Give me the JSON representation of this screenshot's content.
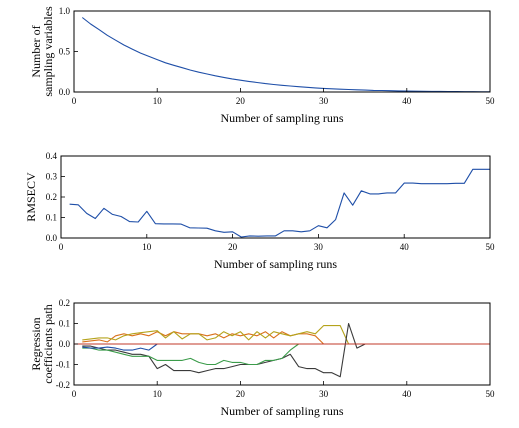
{
  "chart_data": [
    {
      "type": "line",
      "ylabel": [
        "Number of",
        "sampling variables"
      ],
      "xlabel": "Number of sampling runs",
      "xlim": [
        0,
        50
      ],
      "ylim": [
        0,
        1.0
      ],
      "xticks": [
        0,
        10,
        20,
        30,
        40,
        50
      ],
      "yticks": [
        0,
        0.5,
        1.0
      ],
      "ytick_labels": [
        "0.0",
        "0.5",
        "1.0"
      ],
      "colors": [
        "#1f4fa8"
      ],
      "series": [
        {
          "x": [
            1,
            2,
            3,
            4,
            5,
            6,
            7,
            8,
            9,
            10,
            11,
            12,
            13,
            14,
            15,
            16,
            17,
            18,
            19,
            20,
            21,
            22,
            23,
            24,
            25,
            26,
            27,
            28,
            29,
            30,
            31,
            32,
            33,
            34,
            35,
            36,
            37,
            38,
            39,
            40,
            41,
            42,
            43,
            44,
            45,
            46,
            47,
            48,
            49,
            50
          ],
          "values": [
            0.92,
            0.84,
            0.77,
            0.7,
            0.64,
            0.58,
            0.53,
            0.48,
            0.44,
            0.4,
            0.36,
            0.33,
            0.3,
            0.27,
            0.245,
            0.222,
            0.2,
            0.18,
            0.162,
            0.146,
            0.131,
            0.117,
            0.104,
            0.093,
            0.083,
            0.074,
            0.066,
            0.058,
            0.051,
            0.045,
            0.04,
            0.035,
            0.031,
            0.027,
            0.023,
            0.02,
            0.018,
            0.016,
            0.014,
            0.012,
            0.01,
            0.009,
            0.008,
            0.007,
            0.006,
            0.005,
            0.004,
            0.004,
            0.003,
            0.003
          ]
        }
      ]
    },
    {
      "type": "line",
      "ylabel": [
        "RMSECV"
      ],
      "xlabel": "Number of sampling runs",
      "xlim": [
        0,
        50
      ],
      "ylim": [
        0,
        0.4
      ],
      "xticks": [
        0,
        10,
        20,
        30,
        40,
        50
      ],
      "yticks": [
        0,
        0.1,
        0.2,
        0.3,
        0.4
      ],
      "ytick_labels": [
        "0.0",
        "0.1",
        "0.2",
        "0.3",
        "0.4"
      ],
      "colors": [
        "#1f4fa8"
      ],
      "series": [
        {
          "x": [
            1,
            2,
            3,
            4,
            5,
            6,
            7,
            8,
            9,
            10,
            11,
            12,
            13,
            14,
            15,
            16,
            17,
            18,
            19,
            20,
            21,
            22,
            23,
            24,
            25,
            26,
            27,
            28,
            29,
            30,
            31,
            32,
            33,
            34,
            35,
            36,
            37,
            38,
            39,
            40,
            41,
            42,
            43,
            44,
            45,
            46,
            47,
            48,
            49,
            50
          ],
          "values": [
            0.165,
            0.162,
            0.12,
            0.095,
            0.145,
            0.115,
            0.105,
            0.08,
            0.078,
            0.13,
            0.07,
            0.069,
            0.069,
            0.068,
            0.05,
            0.049,
            0.048,
            0.035,
            0.028,
            0.03,
            0.005,
            0.01,
            0.009,
            0.01,
            0.01,
            0.035,
            0.035,
            0.03,
            0.035,
            0.06,
            0.05,
            0.09,
            0.22,
            0.16,
            0.23,
            0.215,
            0.215,
            0.22,
            0.22,
            0.268,
            0.268,
            0.265,
            0.265,
            0.265,
            0.265,
            0.267,
            0.267,
            0.335,
            0.335,
            0.335
          ]
        }
      ]
    },
    {
      "type": "line",
      "ylabel": [
        "Regression",
        "coefficients path"
      ],
      "xlabel": "Number of sampling runs",
      "xlim": [
        0,
        50
      ],
      "ylim": [
        -0.2,
        0.2
      ],
      "xticks": [
        0,
        10,
        20,
        30,
        40,
        50
      ],
      "yticks": [
        -0.2,
        -0.1,
        0,
        0.1,
        0.2
      ],
      "ytick_labels": [
        "-0.2",
        "-0.1",
        "0.0",
        "0.1",
        "0.2"
      ],
      "colors": [
        "#d9711c",
        "#b5a31c",
        "#3a3a3a",
        "#3b9c4a",
        "#1f4fa8",
        "#c2382a"
      ],
      "series": [
        {
          "x": [
            1,
            2,
            3,
            4,
            5,
            6,
            7,
            8,
            9,
            10,
            11,
            12,
            13,
            14,
            15,
            16,
            17,
            18,
            19,
            20,
            21,
            22,
            23,
            24,
            25,
            26,
            27,
            28,
            29,
            30,
            31,
            32,
            33,
            34,
            35,
            36,
            37,
            38,
            39,
            40,
            41,
            42,
            43,
            44,
            45,
            46,
            47,
            48,
            49,
            50
          ],
          "values": [
            0.01,
            0.015,
            0.02,
            0.01,
            0.04,
            0.05,
            0.04,
            0.05,
            0.04,
            0.06,
            0.04,
            0.06,
            0.05,
            0.05,
            0.05,
            0.04,
            0.05,
            0.03,
            0.05,
            0.04,
            0.05,
            0.04,
            0.06,
            0.03,
            0.06,
            0.04,
            0.05,
            0.05,
            0.04,
            0,
            0,
            0,
            0,
            0,
            0,
            0,
            0,
            0,
            0,
            0,
            0,
            0,
            0,
            0,
            0,
            0,
            0,
            0,
            0,
            0
          ]
        },
        {
          "x": [
            1,
            2,
            3,
            4,
            5,
            6,
            7,
            8,
            9,
            10,
            11,
            12,
            13,
            14,
            15,
            16,
            17,
            18,
            19,
            20,
            21,
            22,
            23,
            24,
            25,
            26,
            27,
            28,
            29,
            30,
            31,
            32,
            33,
            34,
            35,
            36,
            37,
            38,
            39,
            40,
            41,
            42,
            43,
            44,
            45,
            46,
            47,
            48,
            49,
            50
          ],
          "values": [
            0.02,
            0.025,
            0.03,
            0.03,
            0.02,
            0.04,
            0.05,
            0.055,
            0.06,
            0.065,
            0.03,
            0.06,
            0.025,
            0.05,
            0.05,
            0.02,
            0.03,
            0.06,
            0.04,
            0.06,
            0.02,
            0.06,
            0.03,
            0.06,
            0.05,
            0.04,
            0.05,
            0.06,
            0.05,
            0.09,
            0.09,
            0.09,
            0,
            0,
            0,
            0,
            0,
            0,
            0,
            0,
            0,
            0,
            0,
            0,
            0,
            0,
            0,
            0,
            0,
            0
          ]
        },
        {
          "x": [
            1,
            2,
            3,
            4,
            5,
            6,
            7,
            8,
            9,
            10,
            11,
            12,
            13,
            14,
            15,
            16,
            17,
            18,
            19,
            20,
            21,
            22,
            23,
            24,
            25,
            26,
            27,
            28,
            29,
            30,
            31,
            32,
            33,
            34,
            35,
            36,
            37,
            38,
            39,
            40,
            41,
            42,
            43,
            44,
            45,
            46,
            47,
            48,
            49,
            50
          ],
          "values": [
            -0.01,
            -0.01,
            -0.02,
            -0.03,
            -0.03,
            -0.04,
            -0.05,
            -0.05,
            -0.06,
            -0.12,
            -0.1,
            -0.13,
            -0.13,
            -0.13,
            -0.14,
            -0.13,
            -0.12,
            -0.12,
            -0.11,
            -0.1,
            -0.1,
            -0.1,
            -0.09,
            -0.08,
            -0.07,
            -0.05,
            -0.11,
            -0.12,
            -0.12,
            -0.14,
            -0.14,
            -0.16,
            0.1,
            -0.02,
            0,
            0,
            0,
            0,
            0,
            0,
            0,
            0,
            0,
            0,
            0,
            0,
            0,
            0,
            0,
            0
          ]
        },
        {
          "x": [
            1,
            2,
            3,
            4,
            5,
            6,
            7,
            8,
            9,
            10,
            11,
            12,
            13,
            14,
            15,
            16,
            17,
            18,
            19,
            20,
            21,
            22,
            23,
            24,
            25,
            26,
            27,
            28,
            29,
            30,
            31,
            32,
            33,
            34,
            35,
            36,
            37,
            38,
            39,
            40,
            41,
            42,
            43,
            44,
            45,
            46,
            47,
            48,
            49,
            50
          ],
          "values": [
            -0.02,
            -0.02,
            -0.03,
            -0.03,
            -0.04,
            -0.05,
            -0.06,
            -0.06,
            -0.06,
            -0.08,
            -0.08,
            -0.08,
            -0.08,
            -0.07,
            -0.09,
            -0.1,
            -0.1,
            -0.08,
            -0.09,
            -0.09,
            -0.1,
            -0.1,
            -0.08,
            -0.08,
            -0.07,
            -0.03,
            0,
            0,
            0,
            0,
            0,
            0,
            0,
            0,
            0,
            0,
            0,
            0,
            0,
            0,
            0,
            0,
            0,
            0,
            0,
            0,
            0,
            0,
            0,
            0
          ]
        },
        {
          "x": [
            1,
            2,
            3,
            4,
            5,
            6,
            7,
            8,
            9,
            10,
            11,
            12,
            13,
            14,
            15,
            16,
            17,
            18,
            19,
            20,
            21,
            22,
            23,
            24,
            25,
            26,
            27,
            28,
            29,
            30,
            31,
            32,
            33,
            34,
            35,
            36,
            37,
            38,
            39,
            40,
            41,
            42,
            43,
            44,
            45,
            46,
            47,
            48,
            49,
            50
          ],
          "values": [
            -0.015,
            -0.02,
            -0.02,
            -0.015,
            -0.02,
            -0.03,
            -0.03,
            -0.02,
            -0.03,
            0,
            0,
            0,
            0,
            0,
            0,
            0,
            0,
            0,
            0,
            0,
            0,
            0,
            0,
            0,
            0,
            0,
            0,
            0,
            0,
            0,
            0,
            0,
            0,
            0,
            0,
            0,
            0,
            0,
            0,
            0,
            0,
            0,
            0,
            0,
            0,
            0,
            0,
            0,
            0,
            0
          ]
        },
        {
          "x": [
            0,
            50
          ],
          "values": [
            0,
            0
          ]
        }
      ]
    }
  ]
}
